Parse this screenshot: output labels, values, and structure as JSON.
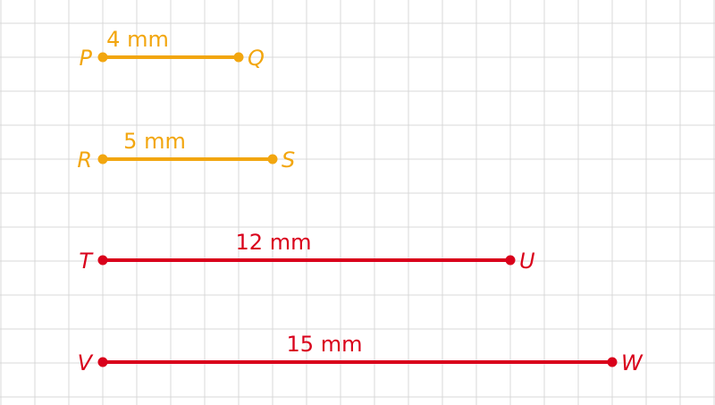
{
  "colors": {
    "grid": "#d9d9d9",
    "orange": "#f2a60f",
    "red": "#d9001b"
  },
  "segments": [
    {
      "start": "P",
      "end": "Q",
      "length_label": "4 mm",
      "length_mm": 4,
      "color": "orange"
    },
    {
      "start": "R",
      "end": "S",
      "length_label": "5 mm",
      "length_mm": 5,
      "color": "orange"
    },
    {
      "start": "T",
      "end": "U",
      "length_label": "12 mm",
      "length_mm": 12,
      "color": "red"
    },
    {
      "start": "V",
      "end": "W",
      "length_label": "15 mm",
      "length_mm": 15,
      "color": "red"
    }
  ]
}
